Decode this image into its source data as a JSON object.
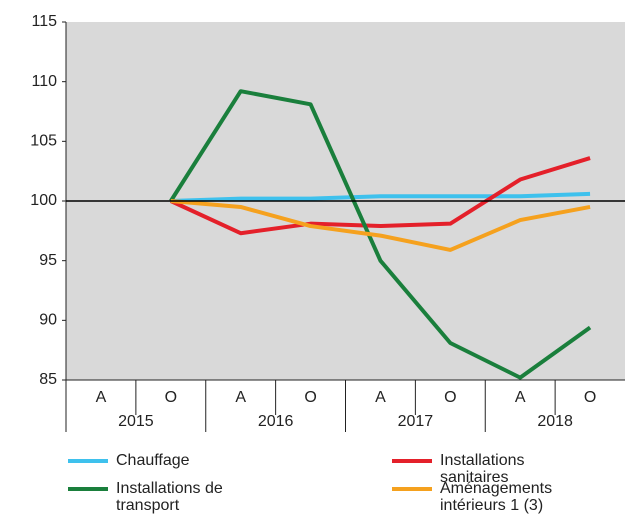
{
  "chart_data": {
    "type": "line",
    "categories": [
      "A",
      "O",
      "A",
      "O",
      "A",
      "O",
      "A",
      "O"
    ],
    "years": [
      "2015",
      "2016",
      "2017",
      "2018"
    ],
    "series": [
      {
        "name": "Chauffage",
        "color": "#3ec1ed",
        "values": [
          null,
          100,
          100.2,
          100.2,
          100.4,
          100.4,
          100.4,
          100.6
        ]
      },
      {
        "name": "Installations sanitaires",
        "color": "#e4202a",
        "values": [
          null,
          100,
          97.3,
          98.1,
          97.9,
          98.1,
          101.8,
          103.6
        ]
      },
      {
        "name": "Installations de transport",
        "color": "#1a7f3c",
        "values": [
          null,
          100,
          109.2,
          108.1,
          95.0,
          88.1,
          85.2,
          89.4
        ]
      },
      {
        "name": "Aménagements intérieurs 1 (3)",
        "color": "#f5a11e",
        "values": [
          null,
          100,
          99.5,
          97.9,
          97.1,
          95.9,
          98.4,
          99.5
        ]
      }
    ],
    "ylim": [
      85,
      115
    ],
    "yticks": [
      85,
      90,
      95,
      100,
      105,
      110,
      115
    ],
    "reference_line": 100,
    "grid": false
  }
}
